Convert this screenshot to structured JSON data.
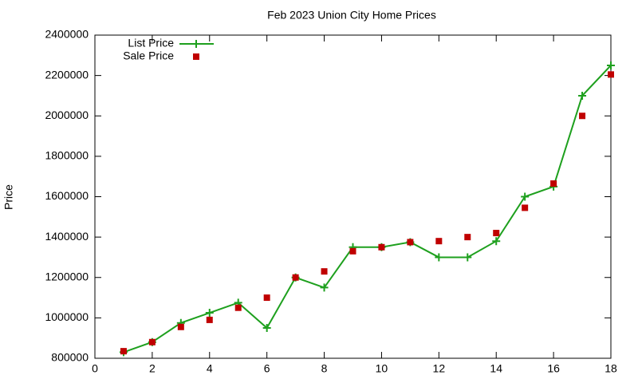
{
  "chart_data": {
    "type": "line",
    "title": "Feb 2023 Union City Home Prices",
    "y_label": "Price",
    "x": [
      1,
      2,
      3,
      4,
      5,
      6,
      7,
      8,
      9,
      10,
      11,
      12,
      13,
      14,
      15,
      16,
      17,
      18
    ],
    "series": [
      {
        "name": "List Price",
        "color": "#1ea01e",
        "line": true,
        "marker": "plus",
        "values": [
          830000,
          880000,
          975000,
          1025000,
          1075000,
          950000,
          1200000,
          1150000,
          1350000,
          1350000,
          1375000,
          1300000,
          1300000,
          1380000,
          1600000,
          1650000,
          2100000,
          2250000
        ]
      },
      {
        "name": "Sale Price",
        "color": "#c00000",
        "line": false,
        "marker": "square",
        "values": [
          835000,
          880000,
          955000,
          990000,
          1050000,
          1100000,
          1200000,
          1230000,
          1330000,
          1350000,
          1375000,
          1380000,
          1400000,
          1420000,
          1545000,
          1665000,
          2000000,
          2205000
        ]
      }
    ],
    "xlim": [
      0,
      18
    ],
    "xticks": [
      0,
      2,
      4,
      6,
      8,
      10,
      12,
      14,
      16,
      18
    ],
    "ylim": [
      800000,
      2400000
    ],
    "yticks": [
      800000,
      1000000,
      1200000,
      1400000,
      1600000,
      1800000,
      2000000,
      2200000,
      2400000
    ],
    "grid": false,
    "legend_position": "top-left"
  }
}
